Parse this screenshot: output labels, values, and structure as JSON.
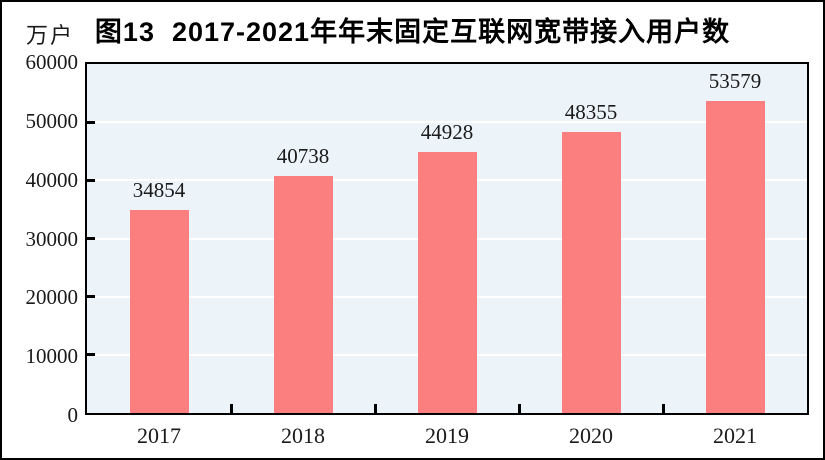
{
  "chart_data": {
    "type": "bar",
    "title": "图13  2017-2021年年末固定互联网宽带接入用户数",
    "unit_label": "万户",
    "categories": [
      "2017",
      "2018",
      "2019",
      "2020",
      "2021"
    ],
    "values": [
      34854,
      40738,
      44928,
      48355,
      53579
    ],
    "ylim": [
      0,
      60000
    ],
    "ytick_step": 10000,
    "ytick_labels": [
      "0",
      "10000",
      "20000",
      "30000",
      "40000",
      "50000",
      "60000"
    ],
    "legend": "none",
    "grid": "horizontal",
    "colors": {
      "bar": "#fc7f7f",
      "plot_background": "#ecf3f9",
      "gridline": "#ffffff",
      "axis": "#000000",
      "text": "#1a1a1a",
      "page_background": "#ffffff",
      "page_border": "#000000"
    }
  }
}
